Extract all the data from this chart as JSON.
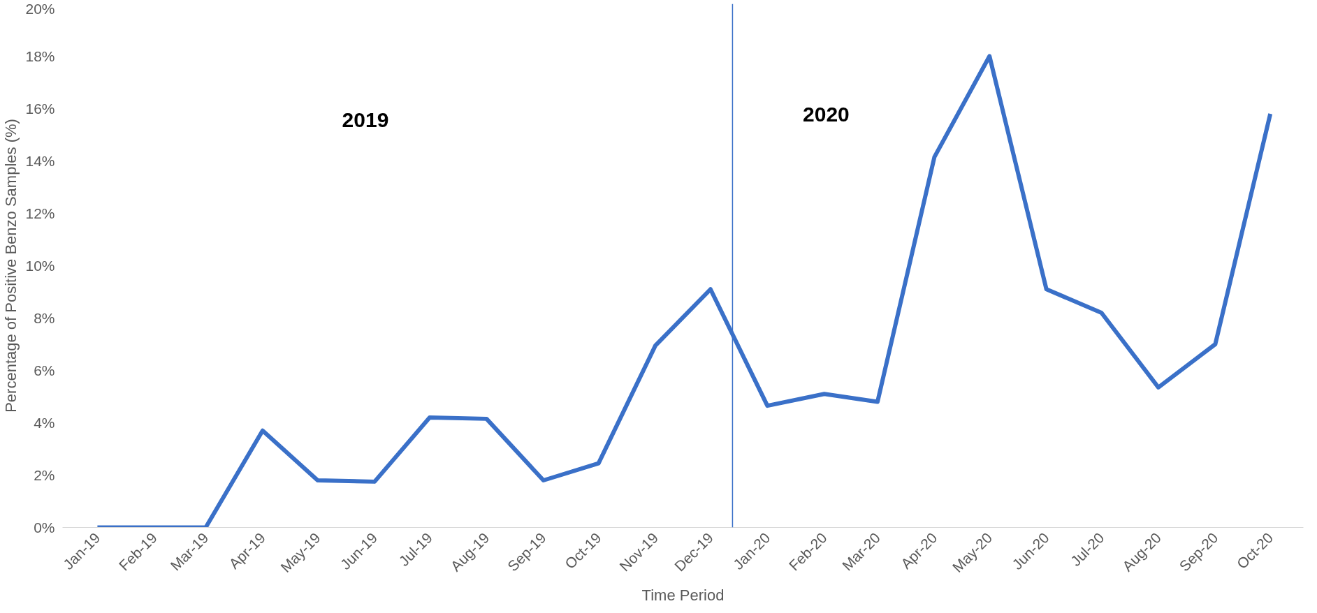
{
  "chart_data": {
    "type": "line",
    "xlabel": "Time Period",
    "ylabel": "Percentage of Positive Benzo Samples (%)",
    "x": [
      "2019-01",
      "2019-02",
      "2019-03",
      "2019-04",
      "2019-05",
      "2019-06",
      "2019-07",
      "2019-08",
      "2019-09",
      "2019-10",
      "2019-11",
      "2019-12",
      "2020-01",
      "2020-02",
      "2020-03",
      "2020-04",
      "2020-05",
      "2020-06",
      "2020-07",
      "2020-08",
      "2020-09",
      "2020-10"
    ],
    "series": [
      {
        "color": "#3a70c8",
        "values": [
          0,
          0,
          0,
          3.7,
          1.8,
          1.75,
          4.2,
          4.15,
          1.8,
          2.45,
          6.95,
          9.1,
          4.65,
          5.1,
          4.8,
          14.15,
          18.0,
          9.1,
          8.2,
          5.35,
          7.0,
          15.8
        ]
      }
    ],
    "xlim": [
      "2018-12-13",
      "2020-10-19"
    ],
    "xticks": [
      {
        "value": "2019-01",
        "label": "Jan-19"
      },
      {
        "value": "2019-02",
        "label": "Feb-19"
      },
      {
        "value": "2019-03",
        "label": "Mar-19"
      },
      {
        "value": "2019-04",
        "label": "Apr-19"
      },
      {
        "value": "2019-05",
        "label": "May-19"
      },
      {
        "value": "2019-06",
        "label": "Jun-19"
      },
      {
        "value": "2019-07",
        "label": "Jul-19"
      },
      {
        "value": "2019-08",
        "label": "Aug-19"
      },
      {
        "value": "2019-09",
        "label": "Sep-19"
      },
      {
        "value": "2019-10",
        "label": "Oct-19"
      },
      {
        "value": "2019-11",
        "label": "Nov-19"
      },
      {
        "value": "2019-12",
        "label": "Dec-19"
      },
      {
        "value": "2020-01",
        "label": "Jan-20"
      },
      {
        "value": "2020-02",
        "label": "Feb-20"
      },
      {
        "value": "2020-03",
        "label": "Mar-20"
      },
      {
        "value": "2020-04",
        "label": "Apr-20"
      },
      {
        "value": "2020-05",
        "label": "May-20"
      },
      {
        "value": "2020-06",
        "label": "Jun-20"
      },
      {
        "value": "2020-07",
        "label": "Jul-20"
      },
      {
        "value": "2020-08",
        "label": "Aug-20"
      },
      {
        "value": "2020-09",
        "label": "Sep-20"
      },
      {
        "value": "2020-10",
        "label": "Oct-20"
      }
    ],
    "ylim": [
      0,
      20
    ],
    "yticks": [
      {
        "value": 0,
        "label": "0%"
      },
      {
        "value": 2,
        "label": "2%"
      },
      {
        "value": 4,
        "label": "4%"
      },
      {
        "value": 6,
        "label": "6%"
      },
      {
        "value": 8,
        "label": "8%"
      },
      {
        "value": 10,
        "label": "10%"
      },
      {
        "value": 12,
        "label": "12%"
      },
      {
        "value": 14,
        "label": "14%"
      },
      {
        "value": 16,
        "label": "16%"
      },
      {
        "value": 18,
        "label": "18%"
      },
      {
        "value": 20,
        "label": "20%"
      }
    ],
    "ref_lines": [
      {
        "axis": "x",
        "value": "2019-12-13",
        "color": "#3a70c8"
      }
    ],
    "annotations": [
      "2019",
      "2020"
    ],
    "grid": false,
    "marker": "none",
    "line_style": "solid"
  }
}
